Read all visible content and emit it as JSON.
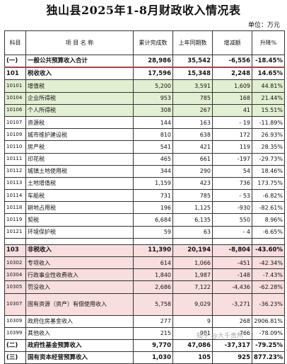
{
  "title": "独山县2025年1-8月财政收入情况表",
  "unit": "单位：万元",
  "headers": {
    "col1": "科目",
    "col2": "项 目 名 称",
    "col3": "累计完成数",
    "col4": "上年同期数",
    "col5": "增减额",
    "col6": "升降%"
  },
  "rows": [
    {
      "code": "(一)",
      "name": "一般公共预算收入合计",
      "cum": "28,986",
      "prev": "35,542",
      "chg": "-6,556",
      "pct": "-18.45%"
    },
    {
      "code": "101",
      "name": "税收收入",
      "cum": "17,596",
      "prev": "15,348",
      "chg": "2,248",
      "pct": "14.65%"
    },
    {
      "code": "10101",
      "name": "增值税",
      "cum": "5,200",
      "prev": "3,591",
      "chg": "1,609",
      "pct": "44.81%"
    },
    {
      "code": "10104",
      "name": "企业所得税",
      "cum": "953",
      "prev": "785",
      "chg": "168",
      "pct": "21.44%"
    },
    {
      "code": "10106",
      "name": "个人所得税",
      "cum": "308",
      "prev": "267",
      "chg": "41",
      "pct": "15.51%"
    },
    {
      "code": "10107",
      "name": "资源税",
      "cum": "144",
      "prev": "163",
      "chg": "- 19",
      "pct": "-11.89%"
    },
    {
      "code": "10109",
      "name": "城市维护建设税",
      "cum": "810",
      "prev": "638",
      "chg": "172",
      "pct": "26.93%"
    },
    {
      "code": "10110",
      "name": "房产税",
      "cum": "541",
      "prev": "421",
      "chg": "119",
      "pct": "28.35%"
    },
    {
      "code": "10111",
      "name": "印花税",
      "cum": "465",
      "prev": "661",
      "chg": "-197",
      "pct": "-29.73%"
    },
    {
      "code": "10112",
      "name": "城镇土地使用税",
      "cum": "344",
      "prev": "290",
      "chg": "54",
      "pct": "18.46%"
    },
    {
      "code": "10113",
      "name": "土地增值税",
      "cum": "1,159",
      "prev": "423",
      "chg": "736",
      "pct": "173.75%"
    },
    {
      "code": "10114",
      "name": "车船税",
      "cum": "731",
      "prev": "785",
      "chg": "- 53",
      "pct": "-6.82%"
    },
    {
      "code": "10118",
      "name": "耕地占用税",
      "cum": "196",
      "prev": "1,125",
      "chg": "-930",
      "pct": "-82.61%"
    },
    {
      "code": "10119",
      "name": "契税",
      "cum": "6,684",
      "prev": "6,135",
      "chg": "550",
      "pct": "8.96%"
    },
    {
      "code": "10121",
      "name": "环境保护税",
      "cum": "59",
      "prev": "63",
      "chg": "- 4",
      "pct": "-6.65%"
    },
    {
      "code": "103",
      "name": "非税收入",
      "cum": "11,390",
      "prev": "20,194",
      "chg": "-8,804",
      "pct": "-43.60%"
    },
    {
      "code": "10302",
      "name": "专项收入",
      "cum": "614",
      "prev": "1,066",
      "chg": "-451",
      "pct": "-42.34%"
    },
    {
      "code": "10304",
      "name": "行政事业性收费收入",
      "cum": "1,840",
      "prev": "1,987",
      "chg": "-148",
      "pct": "-7.43%"
    },
    {
      "code": "10305",
      "name": "罚没收入",
      "cum": "2,686",
      "prev": "7,122",
      "chg": "-4,436",
      "pct": "-62.28%"
    },
    {
      "code": "10307",
      "name": "国有资源（资产）有偿使用收入",
      "cum": "5,758",
      "prev": "9,029",
      "chg": "-3,271",
      "pct": "-36.23%"
    },
    {
      "code": "10309",
      "name": "政府住房基金收入",
      "cum": "277",
      "prev": "9",
      "chg": "268",
      "pct": "2906.81%"
    },
    {
      "code": "10399",
      "name": "其他收入",
      "cum": "215",
      "prev": "981",
      "chg": "-766",
      "pct": "-78.09%"
    },
    {
      "code": "(二)",
      "name": "政府性基金预算收入",
      "cum": "9,770",
      "prev": "47,086",
      "chg": "-37,317",
      "pct": "-79.25%"
    },
    {
      "code": "(三)",
      "name": "国有资本经营预算收入",
      "cum": "1,030",
      "prev": "105",
      "chg": "925",
      "pct": "877.23%"
    }
  ],
  "watermark": "知乎 @大千贵州"
}
